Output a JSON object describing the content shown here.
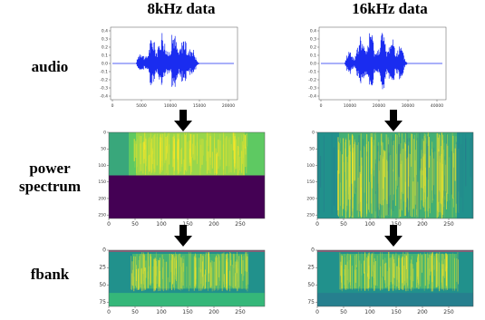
{
  "columns": [
    {
      "title": "8kHz data"
    },
    {
      "title": "16kHz data"
    }
  ],
  "rows": [
    {
      "label_lines": [
        "audio"
      ]
    },
    {
      "label_lines": [
        "power",
        "spectrum"
      ]
    },
    {
      "label_lines": [
        "fbank"
      ]
    }
  ],
  "wave_8k": {
    "y_ticks": [
      "0.4",
      "0.3",
      "0.2",
      "0.1",
      "0.0",
      "-0.1",
      "-0.2",
      "-0.3",
      "-0.4"
    ],
    "x_ticks": [
      "0",
      "5000",
      "10000",
      "15000",
      "20000"
    ]
  },
  "wave_16k": {
    "y_ticks": [
      "0.4",
      "0.3",
      "0.2",
      "0.1",
      "0.0",
      "-0.1",
      "-0.2",
      "-0.3",
      "-0.4"
    ],
    "x_ticks": [
      "0",
      "10000",
      "20000",
      "30000",
      "40000"
    ]
  },
  "spec_8k": {
    "y_ticks": [
      "0",
      "50",
      "100",
      "150",
      "200",
      "250"
    ],
    "x_ticks": [
      "0",
      "50",
      "100",
      "150",
      "200",
      "250"
    ]
  },
  "spec_16k": {
    "y_ticks": [
      "0",
      "50",
      "100",
      "150",
      "200",
      "250"
    ],
    "x_ticks": [
      "0",
      "50",
      "100",
      "150",
      "200",
      "250"
    ]
  },
  "fbank_8k": {
    "y_ticks": [
      "0",
      "25",
      "50",
      "75"
    ],
    "x_ticks": [
      "0",
      "50",
      "100",
      "150",
      "200",
      "250"
    ]
  },
  "fbank_16k": {
    "y_ticks": [
      "0",
      "25",
      "50",
      "75"
    ],
    "x_ticks": [
      "0",
      "50",
      "100",
      "150",
      "200",
      "250"
    ]
  },
  "colors": {
    "waveform": "#1a2cf0",
    "viridis_dark": "#440154",
    "viridis_teal": "#21918c",
    "viridis_green": "#5ec962",
    "viridis_yellow": "#fde725",
    "arrow": "#000000"
  }
}
